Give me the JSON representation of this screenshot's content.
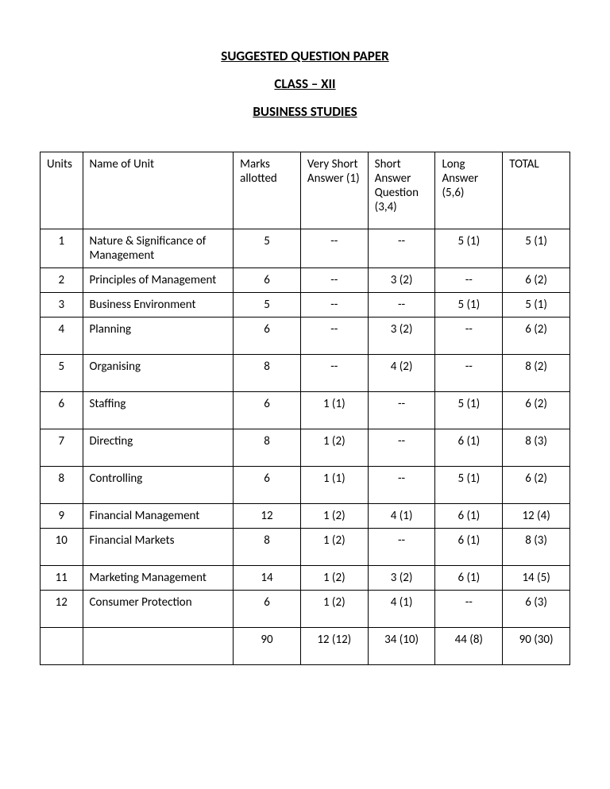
{
  "headings": {
    "line1": "SUGGESTED QUESTION PAPER",
    "line2": "CLASS – XII",
    "line3": "BUSINESS STUDIES"
  },
  "columns": {
    "units": "Units",
    "name": "Name of Unit",
    "marks": "Marks allotted",
    "vshort": "Very Short Answer (1)",
    "short": "Short Answer Question (3,4)",
    "long": "Long Answer (5,6)",
    "total": "TOTAL"
  },
  "rows": [
    {
      "unit": "1",
      "name": "Nature & Significance of Management",
      "marks": "5",
      "vshort": "--",
      "short": "--",
      "long": "5 (1)",
      "total": "5 (1)"
    },
    {
      "unit": "2",
      "name": "Principles of Management",
      "marks": "6",
      "vshort": "--",
      "short": "3 (2)",
      "long": "--",
      "total": "6 (2)"
    },
    {
      "unit": "3",
      "name": "Business Environment",
      "marks": "5",
      "vshort": "--",
      "short": "--",
      "long": "5 (1)",
      "total": "5 (1)"
    },
    {
      "unit": "4",
      "name": "Planning",
      "marks": "6",
      "vshort": "--",
      "short": "3 (2)",
      "long": "--",
      "total": "6 (2)"
    },
    {
      "unit": "5",
      "name": "Organising",
      "marks": "8",
      "vshort": "--",
      "short": "4 (2)",
      "long": "--",
      "total": "8 (2)"
    },
    {
      "unit": "6",
      "name": "Staffing",
      "marks": "6",
      "vshort": "1 (1)",
      "short": "--",
      "long": "5 (1)",
      "total": "6 (2)"
    },
    {
      "unit": "7",
      "name": "Directing",
      "marks": "8",
      "vshort": "1 (2)",
      "short": "--",
      "long": "6 (1)",
      "total": "8 (3)"
    },
    {
      "unit": "8",
      "name": "Controlling",
      "marks": "6",
      "vshort": "1 (1)",
      "short": "--",
      "long": "5 (1)",
      "total": "6 (2)"
    },
    {
      "unit": "9",
      "name": "Financial Management",
      "marks": "12",
      "vshort": "1 (2)",
      "short": "4 (1)",
      "long": "6 (1)",
      "total": "12 (4)"
    },
    {
      "unit": "10",
      "name": "Financial Markets",
      "marks": "8",
      "vshort": "1 (2)",
      "short": "--",
      "long": "6 (1)",
      "total": "8 (3)"
    },
    {
      "unit": "11",
      "name": "Marketing Management",
      "marks": "14",
      "vshort": "1 (2)",
      "short": "3 (2)",
      "long": "6 (1)",
      "total": "14 (5)"
    },
    {
      "unit": "12",
      "name": "Consumer Protection",
      "marks": "6",
      "vshort": "1 (2)",
      "short": "4 (1)",
      "long": "--",
      "total": "6 (3)"
    }
  ],
  "totals": {
    "unit": "",
    "name": "",
    "marks": "90",
    "vshort": "12 (12)",
    "short": "34 (10)",
    "long": "44 (8)",
    "total": "90 (30)"
  },
  "tall_rows": [
    3,
    4,
    5,
    6,
    7,
    9,
    11
  ]
}
